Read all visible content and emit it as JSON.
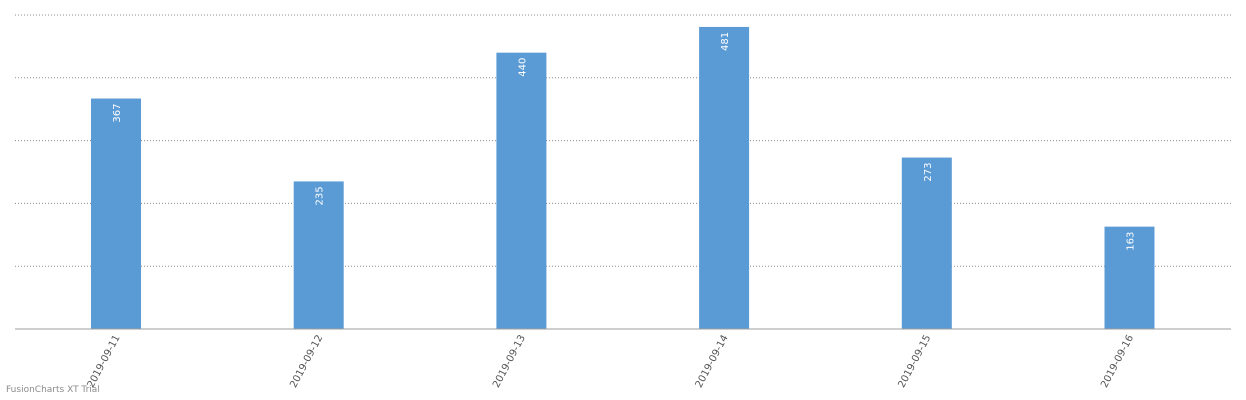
{
  "watermark": "FusionCharts XT Trial",
  "colors": {
    "bar": "#5b9bd5",
    "data_label": "#ffffff",
    "gridline": "#8c8c8c",
    "axis": "#9e9e9e",
    "tick_label": "#555555"
  },
  "chart_data": {
    "type": "bar",
    "categories": [
      "2019-09-11",
      "2019-09-12",
      "2019-09-13",
      "2019-09-14",
      "2019-09-15",
      "2019-09-16"
    ],
    "values": [
      367,
      235,
      440,
      481,
      273,
      163
    ],
    "title": "",
    "xlabel": "",
    "ylabel": "",
    "ylim": [
      0,
      500
    ],
    "grid": true,
    "legend": "none"
  }
}
